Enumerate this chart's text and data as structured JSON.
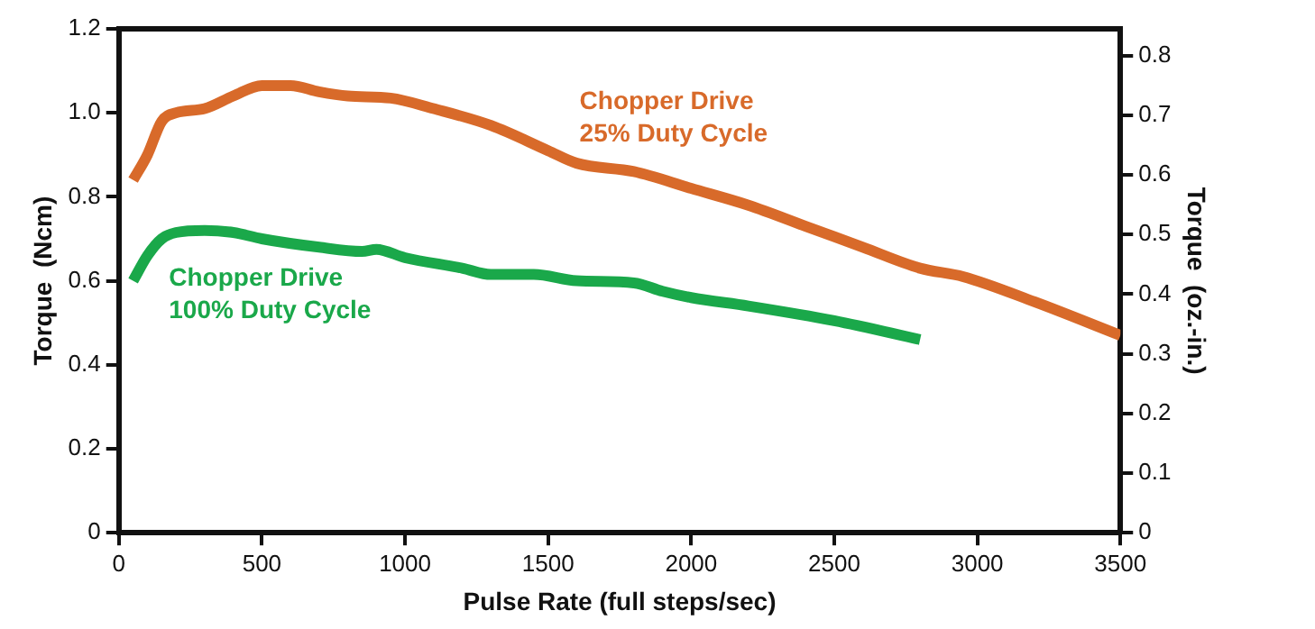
{
  "chart_data": {
    "type": "line",
    "xlabel": "Pulse Rate (full steps/sec)",
    "ylabel": "Torque  (Ncm)",
    "y2label": "Torque  (oz.-in.)",
    "xlim": [
      0,
      3500
    ],
    "xticks": [
      0,
      500,
      1000,
      1500,
      2000,
      2500,
      3000,
      3500
    ],
    "ylim": [
      0,
      1.2
    ],
    "yticks": [
      {
        "value": 0,
        "label": "0"
      },
      {
        "value": 0.2,
        "label": "0.2"
      },
      {
        "value": 0.4,
        "label": "0.4"
      },
      {
        "value": 0.6,
        "label": "0.6"
      },
      {
        "value": 0.8,
        "label": "0.8"
      },
      {
        "value": 1.0,
        "label": "1.0"
      },
      {
        "value": 1.2,
        "label": "1.2"
      }
    ],
    "y2lim": [
      0,
      0.845
    ],
    "y2ticks": [
      {
        "value": 0,
        "label": "0"
      },
      0.1,
      0.2,
      0.3,
      0.4,
      0.5,
      0.6,
      0.7,
      0.8
    ],
    "grid": false,
    "legend": false,
    "marker": "none",
    "line_style": "solid",
    "series": [
      {
        "name": "Chopper Drive\n25% Duty Cycle",
        "color": "#d86a2a",
        "x": [
          50,
          100,
          150,
          200,
          300,
          400,
          500,
          600,
          700,
          800,
          950,
          1100,
          1300,
          1500,
          1600,
          1800,
          2000,
          2200,
          2400,
          2600,
          2800,
          2950,
          3200,
          3500
        ],
        "values": [
          0.84,
          0.9,
          0.98,
          1.0,
          1.01,
          1.04,
          1.065,
          1.065,
          1.05,
          1.04,
          1.035,
          1.01,
          0.97,
          0.91,
          0.88,
          0.86,
          0.82,
          0.78,
          0.73,
          0.68,
          0.63,
          0.61,
          0.55,
          0.47
        ]
      },
      {
        "name": "Chopper Drive\n100% Duty Cycle",
        "color": "#1aa84a",
        "x": [
          50,
          100,
          150,
          200,
          300,
          400,
          500,
          700,
          850,
          900,
          1000,
          1200,
          1300,
          1450,
          1600,
          1800,
          1900,
          2000,
          2200,
          2500,
          2800
        ],
        "values": [
          0.6,
          0.66,
          0.7,
          0.715,
          0.72,
          0.715,
          0.7,
          0.68,
          0.67,
          0.675,
          0.655,
          0.63,
          0.615,
          0.615,
          0.6,
          0.595,
          0.575,
          0.56,
          0.54,
          0.505,
          0.46
        ]
      }
    ]
  }
}
